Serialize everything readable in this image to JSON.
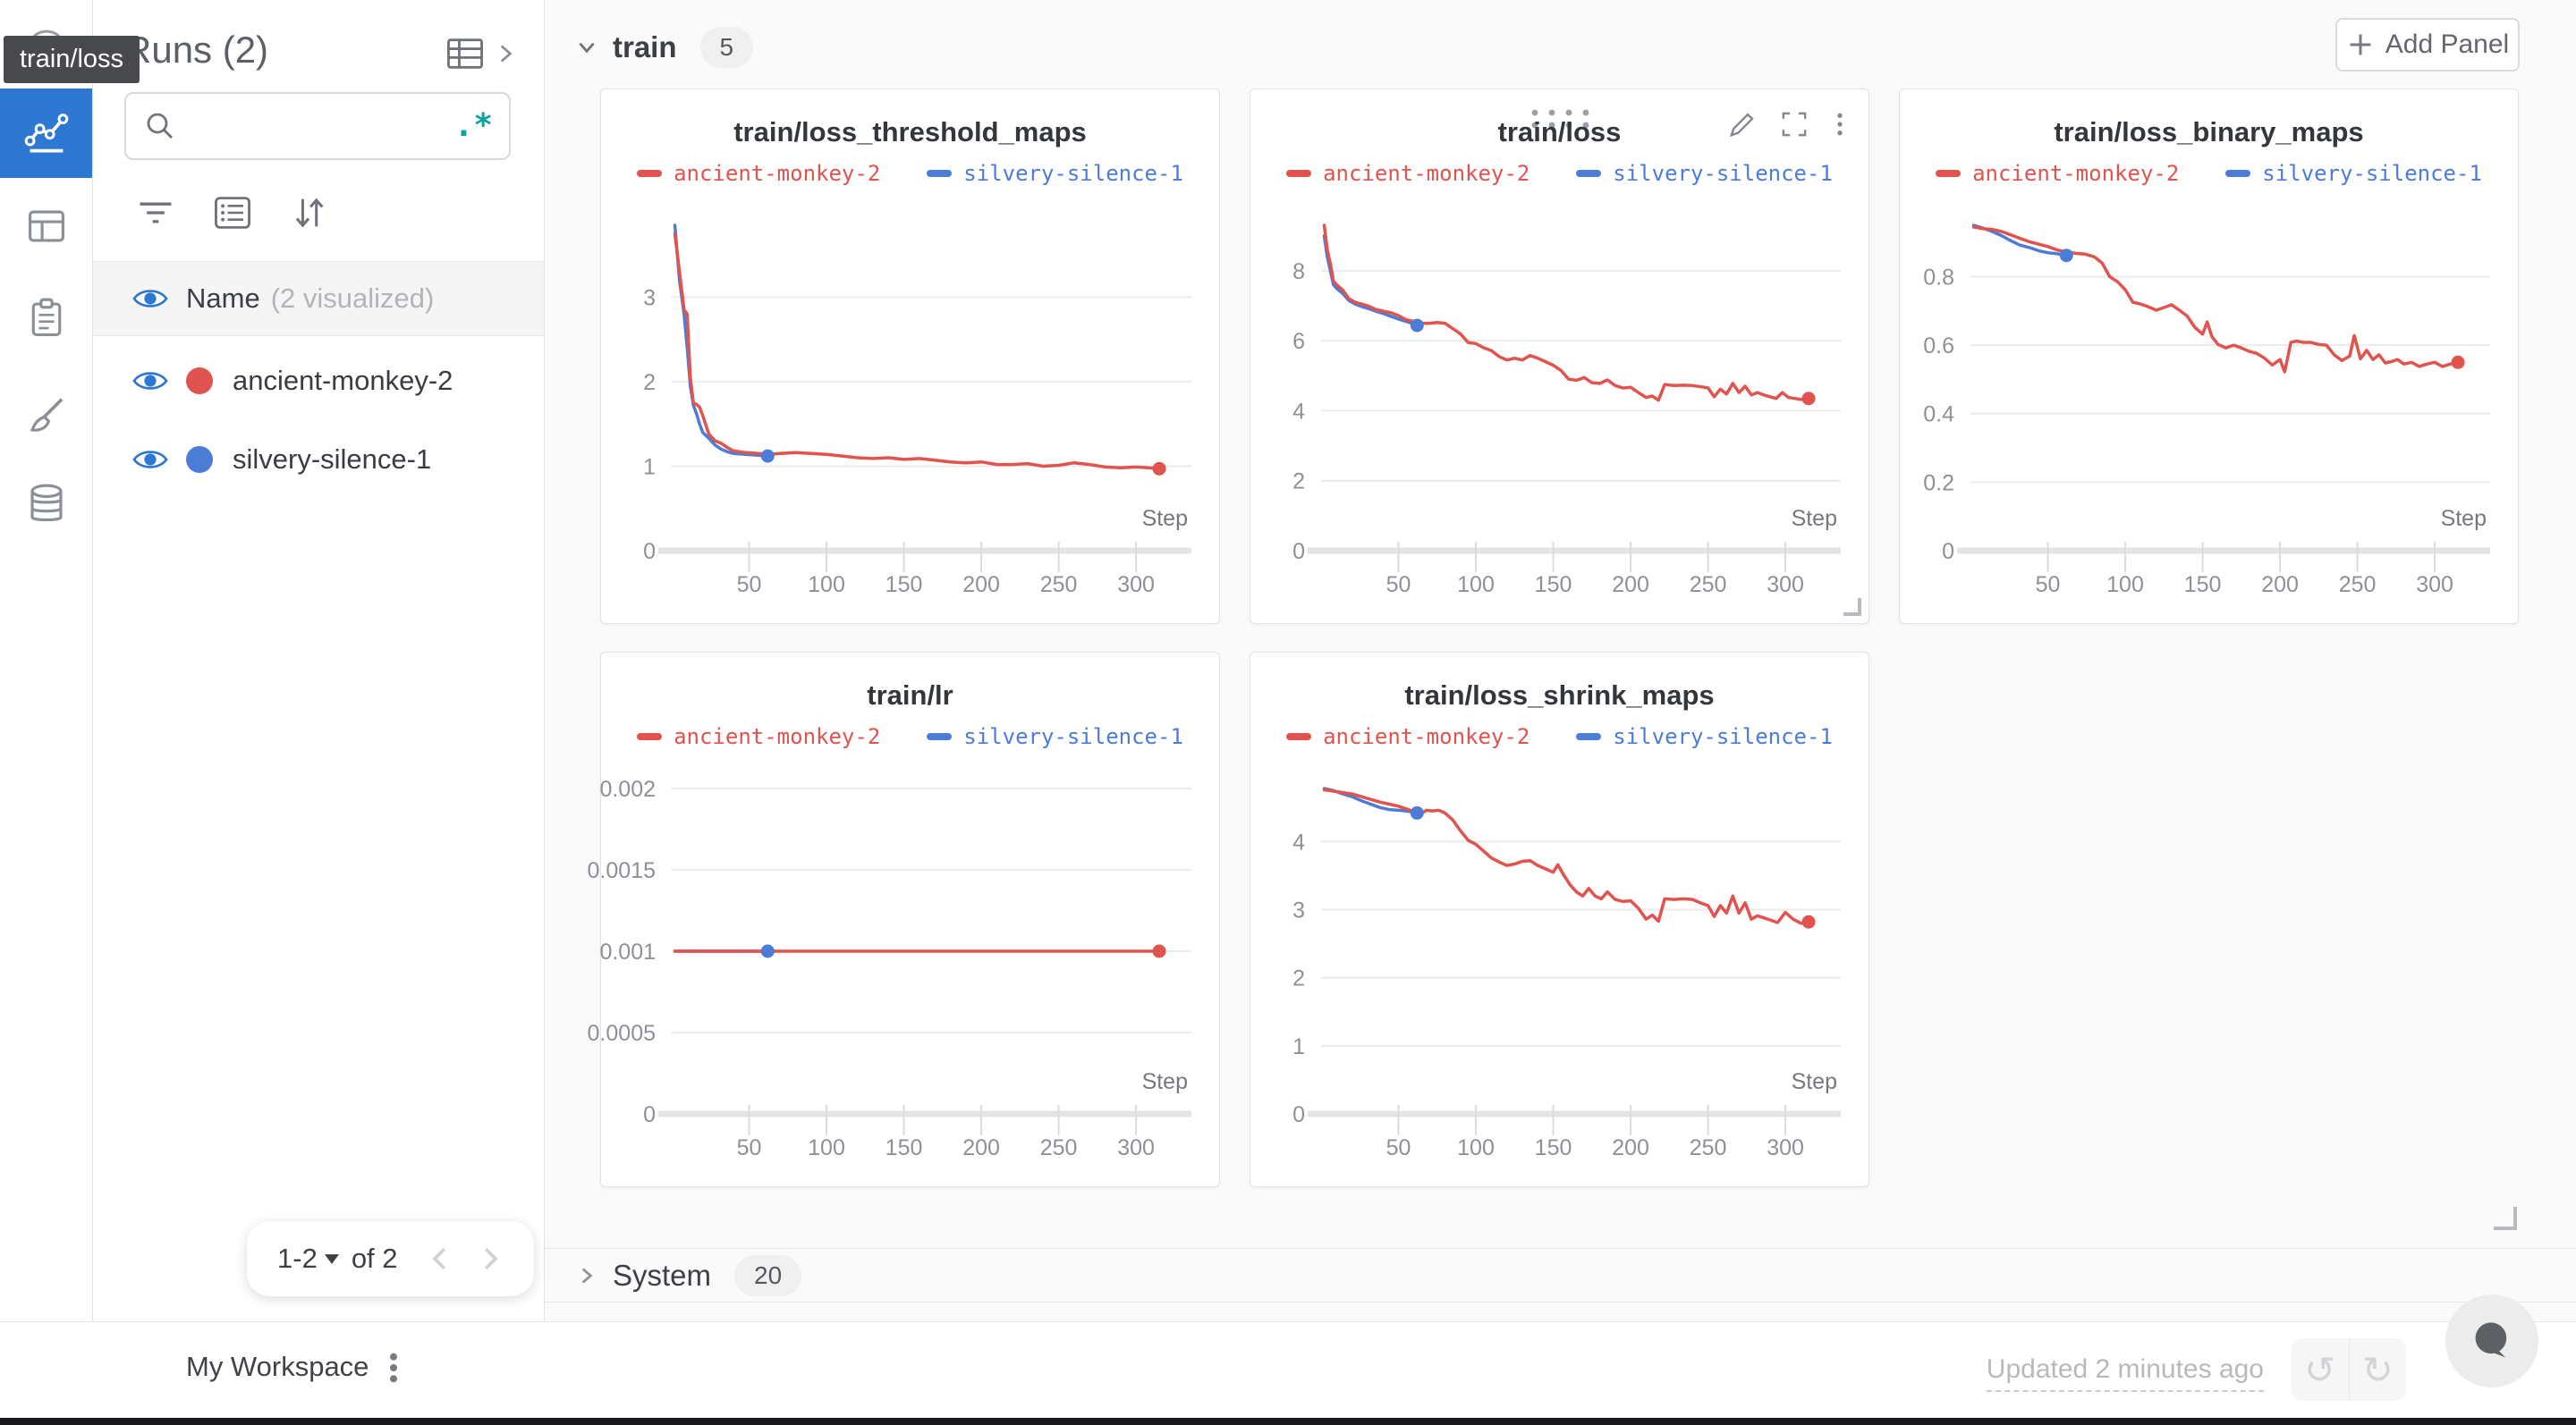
{
  "app": {
    "tooltip": "train/loss"
  },
  "sidebar": {
    "title": "Runs (2)",
    "search": {
      "placeholder": "",
      "regex_label": ".*"
    },
    "list_header": {
      "name": "Name",
      "visualized": "(2 visualized)"
    },
    "runs": [
      {
        "name": "ancient-monkey-2",
        "color": "#e0534e"
      },
      {
        "name": "silvery-silence-1",
        "color": "#4d7cd6"
      }
    ],
    "pagination": {
      "range": "1-2",
      "of": "of 2"
    }
  },
  "main": {
    "sections": [
      {
        "label": "train",
        "count": "5"
      },
      {
        "label": "System",
        "count": "20"
      }
    ],
    "add_panel_label": "Add Panel"
  },
  "footer": {
    "workspace": "My Workspace",
    "updated": "Updated 2 minutes ago"
  },
  "colors": {
    "accent_blue": "#2e78d2",
    "run_red": "#e0534e",
    "run_blue": "#4d7cd6",
    "regex_teal": "#0ba3a6",
    "tooltip_bg": "#47494d"
  },
  "chart_data": [
    {
      "type": "line",
      "title": "train/loss_threshold_maps",
      "xlabel": "Step",
      "grid": true,
      "legend_position": "top",
      "hovered": false,
      "xticks": [
        50,
        100,
        150,
        200,
        250,
        300
      ],
      "yticks": [
        0,
        1,
        2,
        3
      ],
      "xlim": [
        0,
        330
      ],
      "ylim": [
        0,
        3.9
      ],
      "series": [
        {
          "name": "ancient-monkey-2",
          "color": "#e0534e",
          "x": [
            2,
            5,
            8,
            10,
            12,
            14,
            16,
            18,
            20,
            24,
            28,
            32,
            36,
            40,
            48,
            56,
            62,
            70,
            80,
            90,
            100,
            110,
            120,
            130,
            140,
            150,
            160,
            170,
            180,
            190,
            200,
            210,
            220,
            230,
            240,
            250,
            260,
            270,
            280,
            290,
            300,
            308,
            315
          ],
          "y": [
            3.75,
            3.3,
            2.85,
            2.8,
            2.05,
            1.75,
            1.73,
            1.7,
            1.6,
            1.38,
            1.3,
            1.27,
            1.22,
            1.18,
            1.16,
            1.15,
            1.14,
            1.15,
            1.16,
            1.15,
            1.14,
            1.12,
            1.1,
            1.09,
            1.1,
            1.08,
            1.09,
            1.07,
            1.05,
            1.04,
            1.05,
            1.02,
            1.02,
            1.03,
            1.0,
            1.01,
            1.04,
            1.02,
            0.99,
            0.98,
            0.99,
            0.98,
            0.97
          ]
        },
        {
          "name": "silvery-silence-1",
          "color": "#4d7cd6",
          "x": [
            2,
            5,
            8,
            10,
            12,
            14,
            16,
            18,
            20,
            24,
            28,
            32,
            36,
            40,
            48,
            56,
            62
          ],
          "y": [
            3.85,
            3.2,
            2.8,
            2.4,
            1.95,
            1.72,
            1.62,
            1.5,
            1.4,
            1.33,
            1.25,
            1.2,
            1.17,
            1.15,
            1.14,
            1.13,
            1.12
          ]
        }
      ]
    },
    {
      "type": "line",
      "title": "train/loss",
      "xlabel": "Step",
      "grid": true,
      "legend_position": "top",
      "hovered": true,
      "xticks": [
        50,
        100,
        150,
        200,
        250,
        300
      ],
      "yticks": [
        0,
        2,
        4,
        6,
        8
      ],
      "xlim": [
        0,
        330
      ],
      "ylim": [
        0,
        9.3
      ],
      "series": [
        {
          "name": "ancient-monkey-2",
          "color": "#e0534e",
          "x": [
            2,
            4,
            6,
            8,
            10,
            14,
            18,
            22,
            26,
            30,
            35,
            40,
            45,
            50,
            55,
            60,
            65,
            70,
            75,
            80,
            85,
            90,
            95,
            100,
            105,
            110,
            115,
            120,
            125,
            130,
            135,
            140,
            145,
            150,
            155,
            160,
            165,
            170,
            175,
            180,
            185,
            190,
            195,
            200,
            205,
            210,
            214,
            218,
            222,
            228,
            234,
            240,
            246,
            250,
            254,
            258,
            262,
            266,
            270,
            274,
            278,
            282,
            286,
            290,
            294,
            298,
            302,
            306,
            310,
            315
          ],
          "y": [
            9.3,
            8.6,
            8.2,
            7.7,
            7.6,
            7.45,
            7.2,
            7.1,
            7.05,
            7.0,
            6.9,
            6.85,
            6.8,
            6.72,
            6.6,
            6.55,
            6.5,
            6.5,
            6.52,
            6.5,
            6.35,
            6.2,
            5.95,
            5.92,
            5.8,
            5.72,
            5.55,
            5.45,
            5.5,
            5.45,
            5.58,
            5.5,
            5.4,
            5.3,
            5.15,
            4.9,
            4.87,
            4.95,
            4.8,
            4.78,
            4.88,
            4.72,
            4.65,
            4.67,
            4.52,
            4.38,
            4.42,
            4.3,
            4.75,
            4.72,
            4.73,
            4.72,
            4.68,
            4.65,
            4.4,
            4.62,
            4.48,
            4.78,
            4.52,
            4.7,
            4.45,
            4.52,
            4.45,
            4.4,
            4.35,
            4.52,
            4.38,
            4.35,
            4.32,
            4.35
          ]
        },
        {
          "name": "silvery-silence-1",
          "color": "#4d7cd6",
          "x": [
            2,
            4,
            6,
            8,
            10,
            14,
            18,
            22,
            26,
            30,
            35,
            40,
            45,
            50,
            55,
            60,
            62
          ],
          "y": [
            9.0,
            8.4,
            8.0,
            7.6,
            7.5,
            7.35,
            7.15,
            7.05,
            6.98,
            6.93,
            6.85,
            6.78,
            6.7,
            6.62,
            6.55,
            6.48,
            6.44
          ]
        }
      ]
    },
    {
      "type": "line",
      "title": "train/loss_binary_maps",
      "xlabel": "Step",
      "grid": true,
      "legend_position": "top",
      "hovered": false,
      "xticks": [
        50,
        100,
        150,
        200,
        250,
        300
      ],
      "yticks": [
        0,
        0.2,
        0.4,
        0.6,
        0.8
      ],
      "xlim": [
        0,
        330
      ],
      "ylim": [
        0,
        0.96
      ],
      "series": [
        {
          "name": "ancient-monkey-2",
          "color": "#e0534e",
          "x": [
            2,
            8,
            14,
            20,
            26,
            32,
            38,
            44,
            50,
            56,
            62,
            68,
            74,
            80,
            85,
            90,
            95,
            100,
            105,
            110,
            115,
            120,
            125,
            130,
            135,
            140,
            145,
            150,
            153,
            156,
            160,
            165,
            170,
            175,
            180,
            185,
            190,
            195,
            200,
            203,
            207,
            211,
            215,
            220,
            225,
            230,
            235,
            240,
            245,
            248,
            252,
            256,
            260,
            264,
            268,
            272,
            276,
            280,
            285,
            290,
            295,
            300,
            305,
            310,
            315
          ],
          "y": [
            0.945,
            0.94,
            0.938,
            0.932,
            0.922,
            0.912,
            0.902,
            0.895,
            0.888,
            0.878,
            0.872,
            0.868,
            0.866,
            0.858,
            0.84,
            0.8,
            0.785,
            0.762,
            0.725,
            0.72,
            0.712,
            0.702,
            0.71,
            0.718,
            0.702,
            0.685,
            0.652,
            0.632,
            0.668,
            0.625,
            0.602,
            0.592,
            0.6,
            0.592,
            0.582,
            0.576,
            0.562,
            0.542,
            0.558,
            0.522,
            0.608,
            0.612,
            0.608,
            0.608,
            0.602,
            0.6,
            0.572,
            0.555,
            0.568,
            0.628,
            0.56,
            0.585,
            0.558,
            0.572,
            0.548,
            0.552,
            0.558,
            0.545,
            0.55,
            0.538,
            0.545,
            0.55,
            0.538,
            0.545,
            0.55
          ]
        },
        {
          "name": "silvery-silence-1",
          "color": "#4d7cd6",
          "x": [
            2,
            8,
            14,
            20,
            26,
            32,
            38,
            44,
            50,
            56,
            62
          ],
          "y": [
            0.95,
            0.942,
            0.932,
            0.92,
            0.905,
            0.892,
            0.885,
            0.876,
            0.87,
            0.867,
            0.862
          ]
        }
      ]
    },
    {
      "type": "line",
      "title": "train/lr",
      "xlabel": "Step",
      "grid": true,
      "legend_position": "top",
      "hovered": false,
      "xticks": [
        50,
        100,
        150,
        200,
        250,
        300
      ],
      "yticks": [
        0,
        0.0005,
        0.001,
        0.0015,
        0.002
      ],
      "xlim": [
        0,
        330
      ],
      "ylim": [
        0,
        0.0021
      ],
      "series": [
        {
          "name": "ancient-monkey-2",
          "color": "#e0534e",
          "x": [
            2,
            315
          ],
          "y": [
            0.001,
            0.001
          ]
        },
        {
          "name": "silvery-silence-1",
          "color": "#4d7cd6",
          "x": [
            2,
            62
          ],
          "y": [
            0.001,
            0.001
          ]
        }
      ]
    },
    {
      "type": "line",
      "title": "train/loss_shrink_maps",
      "xlabel": "Step",
      "grid": true,
      "legend_position": "top",
      "hovered": false,
      "xticks": [
        50,
        100,
        150,
        200,
        250,
        300
      ],
      "yticks": [
        0,
        1,
        2,
        3,
        4
      ],
      "xlim": [
        0,
        330
      ],
      "ylim": [
        0,
        4.8
      ],
      "series": [
        {
          "name": "ancient-monkey-2",
          "color": "#e0534e",
          "x": [
            2,
            8,
            14,
            20,
            26,
            32,
            38,
            44,
            50,
            55,
            60,
            64,
            68,
            72,
            76,
            80,
            85,
            90,
            95,
            100,
            105,
            110,
            115,
            120,
            125,
            130,
            135,
            140,
            145,
            150,
            153,
            157,
            161,
            165,
            169,
            173,
            177,
            181,
            185,
            190,
            195,
            200,
            205,
            210,
            214,
            218,
            222,
            228,
            234,
            240,
            245,
            250,
            254,
            258,
            262,
            266,
            270,
            274,
            278,
            282,
            286,
            290,
            295,
            300,
            305,
            310,
            315
          ],
          "y": [
            4.76,
            4.74,
            4.72,
            4.7,
            4.66,
            4.62,
            4.58,
            4.55,
            4.52,
            4.48,
            4.44,
            4.4,
            4.46,
            4.45,
            4.46,
            4.42,
            4.32,
            4.16,
            4.02,
            3.96,
            3.86,
            3.76,
            3.7,
            3.65,
            3.67,
            3.71,
            3.72,
            3.65,
            3.6,
            3.55,
            3.66,
            3.5,
            3.36,
            3.26,
            3.2,
            3.31,
            3.2,
            3.16,
            3.26,
            3.15,
            3.12,
            3.13,
            3.02,
            2.86,
            2.92,
            2.83,
            3.16,
            3.15,
            3.16,
            3.15,
            3.1,
            3.06,
            2.9,
            3.06,
            2.95,
            3.2,
            2.95,
            3.1,
            2.86,
            2.91,
            2.88,
            2.85,
            2.81,
            2.96,
            2.86,
            2.8,
            2.82
          ]
        },
        {
          "name": "silvery-silence-1",
          "color": "#4d7cd6",
          "x": [
            2,
            8,
            14,
            20,
            26,
            32,
            38,
            44,
            50,
            55,
            60,
            62
          ],
          "y": [
            4.78,
            4.75,
            4.7,
            4.66,
            4.6,
            4.55,
            4.5,
            4.47,
            4.46,
            4.45,
            4.43,
            4.42
          ]
        }
      ]
    }
  ]
}
